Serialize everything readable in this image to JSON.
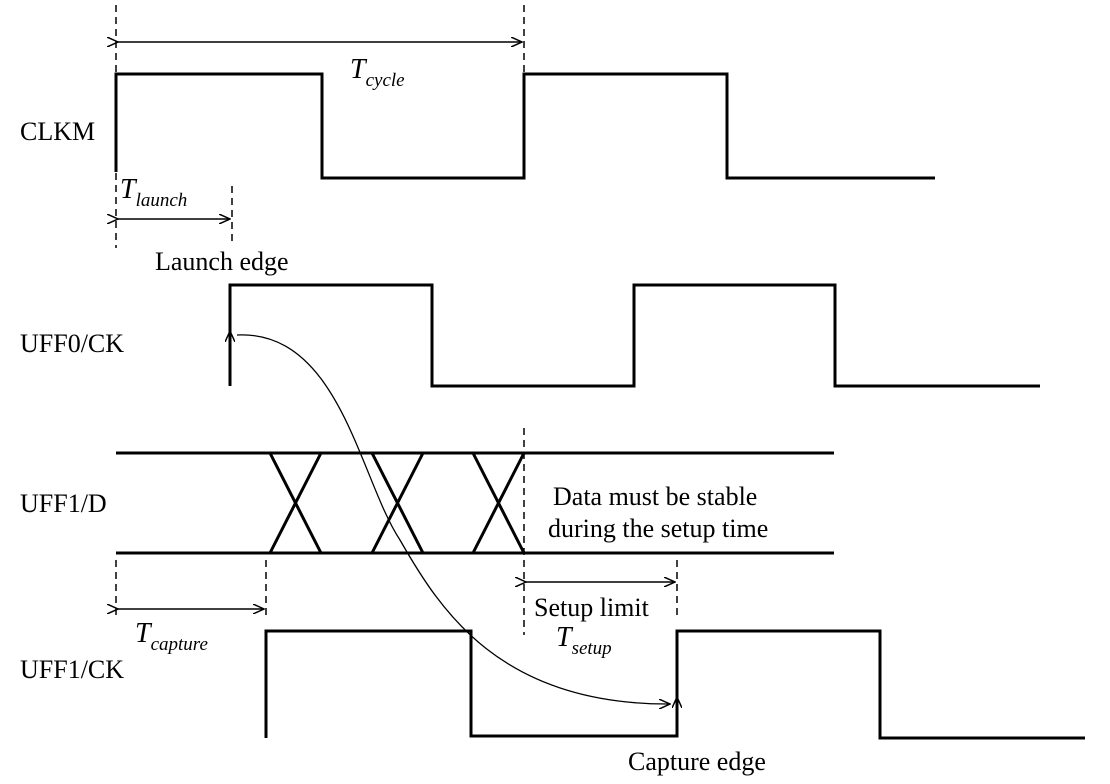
{
  "signals": {
    "clkm": "CLKM",
    "uff0_ck": "UFF0/CK",
    "uff1_d": "UFF1/D",
    "uff1_ck": "UFF1/CK"
  },
  "labels": {
    "t_cycle": {
      "main": "T",
      "sub": "cycle"
    },
    "t_launch": {
      "main": "T",
      "sub": "launch"
    },
    "t_capture": {
      "main": "T",
      "sub": "capture"
    },
    "t_setup": {
      "main": "T",
      "sub": "setup"
    },
    "launch_edge": "Launch edge",
    "capture_edge": "Capture edge",
    "setup_limit": "Setup limit",
    "data_note_line1": "Data must be stable",
    "data_note_line2": "during the setup time"
  }
}
